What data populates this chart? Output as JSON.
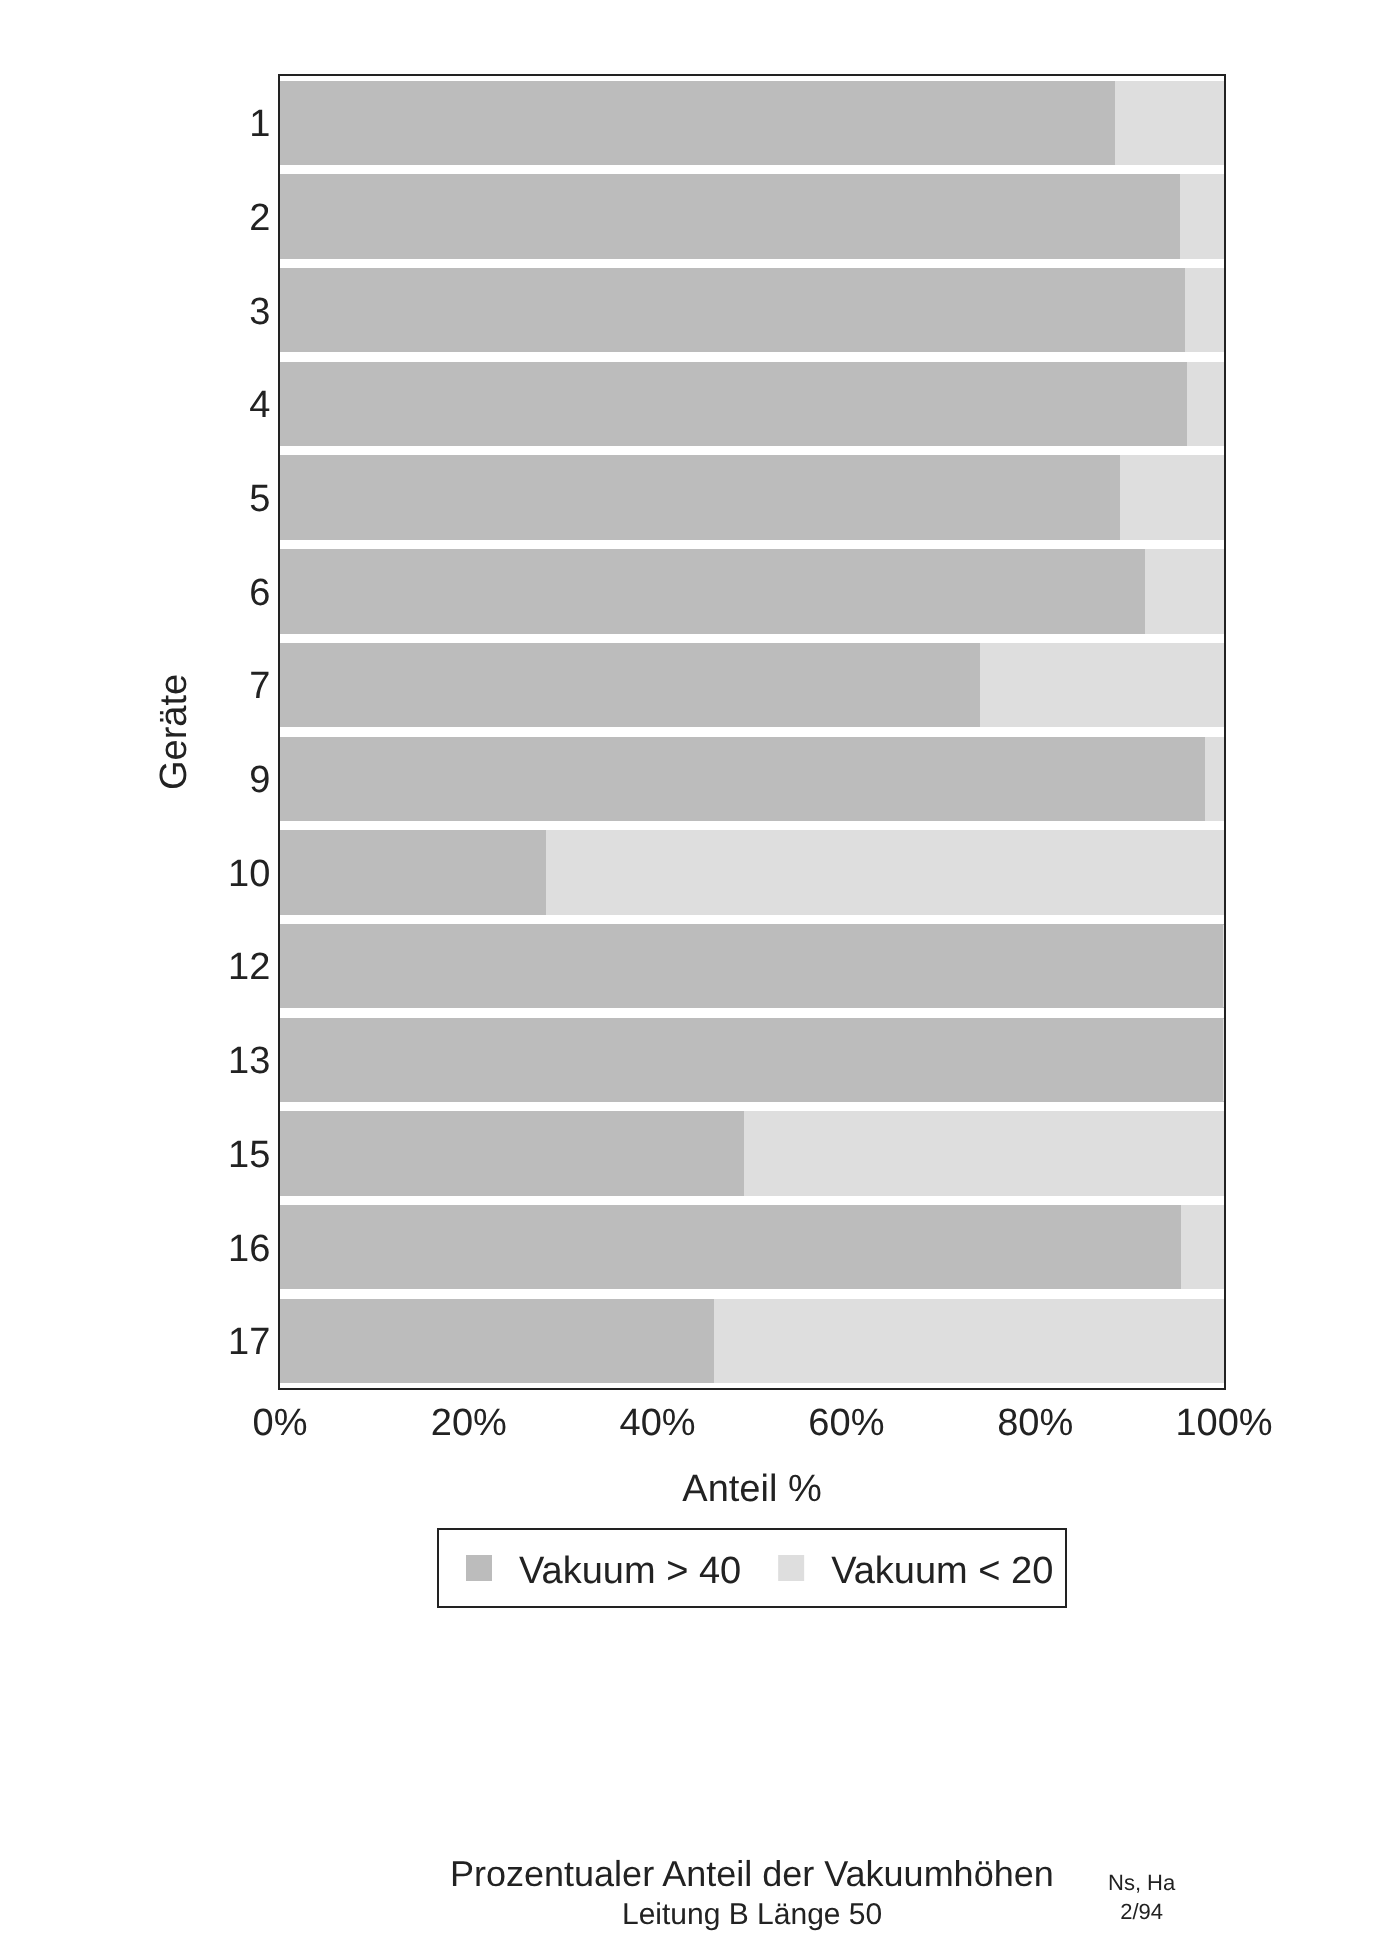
{
  "chart_data": {
    "type": "bar",
    "orientation": "horizontal",
    "stacked": true,
    "title": "Prozentualer Anteil der Vakuumhöhen",
    "subtitle": "Leitung B Länge 50",
    "xlabel": "Anteil %",
    "ylabel": "Geräte",
    "categories": [
      "1",
      "2",
      "3",
      "4",
      "5",
      "6",
      "7",
      "9",
      "10",
      "12",
      "13",
      "15",
      "16",
      "17"
    ],
    "series": [
      {
        "name": "Vakuum > 40",
        "color": "#bcbcbc",
        "values": [
          88.6,
          95.4,
          96,
          96.2,
          89.1,
          91.7,
          74.3,
          98.1,
          28.3,
          100,
          100,
          49.3,
          95.6,
          46.1
        ]
      },
      {
        "name": "Vakuum < 20",
        "color": "#dedede",
        "values": [
          11.4,
          4.6,
          4,
          3.8,
          10.9,
          8.3,
          25.7,
          1.9,
          71.7,
          0,
          0,
          50.7,
          4.4,
          53.9
        ]
      }
    ],
    "xlim": [
      0,
      100
    ],
    "xticks": [
      {
        "value": 0,
        "label": "0%"
      },
      {
        "value": 20,
        "label": "20%"
      },
      {
        "value": 40,
        "label": "40%"
      },
      {
        "value": 60,
        "label": "60%"
      },
      {
        "value": 80,
        "label": "80%"
      },
      {
        "value": 100,
        "label": "100%"
      }
    ],
    "legend": "bottom",
    "annotations": [
      "Ns, Ha\n2/94"
    ]
  }
}
